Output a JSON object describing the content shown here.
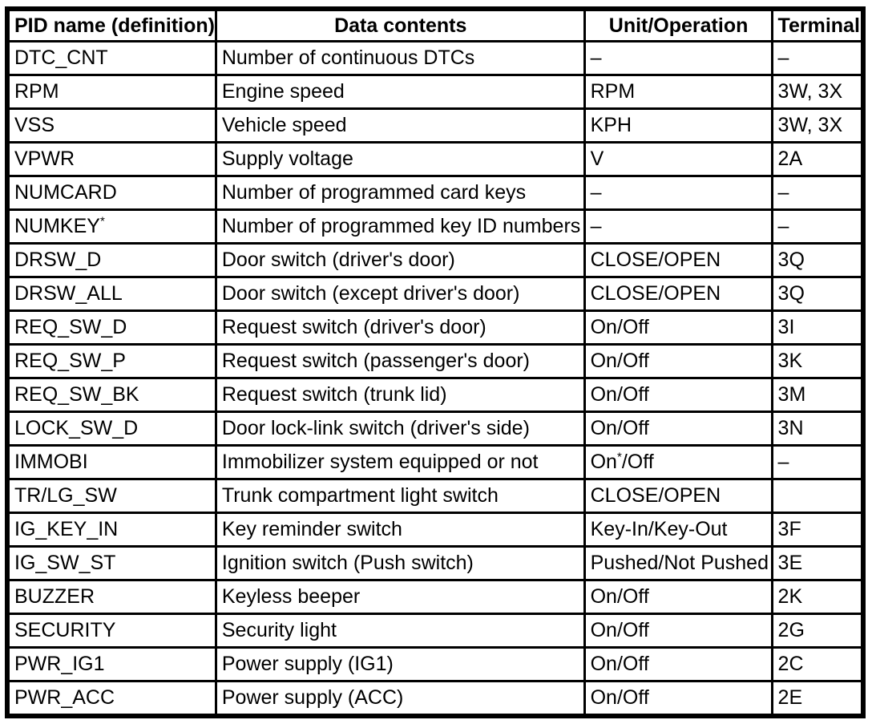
{
  "table": {
    "headers": [
      "PID name (definition)",
      "Data contents",
      "Unit/Operation",
      "Terminal"
    ],
    "rows": [
      {
        "pid": "DTC_CNT",
        "pid_sup": "",
        "data": "Number of continuous DTCs",
        "unit_pre": "–",
        "unit_sup": "",
        "unit_post": "",
        "terminal": "–"
      },
      {
        "pid": "RPM",
        "pid_sup": "",
        "data": "Engine speed",
        "unit_pre": "RPM",
        "unit_sup": "",
        "unit_post": "",
        "terminal": "3W, 3X"
      },
      {
        "pid": "VSS",
        "pid_sup": "",
        "data": "Vehicle speed",
        "unit_pre": "KPH",
        "unit_sup": "",
        "unit_post": "",
        "terminal": "3W, 3X"
      },
      {
        "pid": "VPWR",
        "pid_sup": "",
        "data": "Supply voltage",
        "unit_pre": "V",
        "unit_sup": "",
        "unit_post": "",
        "terminal": "2A"
      },
      {
        "pid": "NUMCARD",
        "pid_sup": "",
        "data": "Number of programmed card keys",
        "unit_pre": "–",
        "unit_sup": "",
        "unit_post": "",
        "terminal": "–"
      },
      {
        "pid": "NUMKEY",
        "pid_sup": "*",
        "data": "Number of programmed key ID numbers",
        "unit_pre": "–",
        "unit_sup": "",
        "unit_post": "",
        "terminal": "–"
      },
      {
        "pid": "DRSW_D",
        "pid_sup": "",
        "data": "Door switch (driver's door)",
        "unit_pre": "CLOSE/OPEN",
        "unit_sup": "",
        "unit_post": "",
        "terminal": "3Q"
      },
      {
        "pid": "DRSW_ALL",
        "pid_sup": "",
        "data": "Door switch (except driver's door)",
        "unit_pre": "CLOSE/OPEN",
        "unit_sup": "",
        "unit_post": "",
        "terminal": "3Q"
      },
      {
        "pid": "REQ_SW_D",
        "pid_sup": "",
        "data": "Request switch (driver's door)",
        "unit_pre": "On/Off",
        "unit_sup": "",
        "unit_post": "",
        "terminal": "3I"
      },
      {
        "pid": "REQ_SW_P",
        "pid_sup": "",
        "data": "Request switch (passenger's door)",
        "unit_pre": "On/Off",
        "unit_sup": "",
        "unit_post": "",
        "terminal": "3K"
      },
      {
        "pid": "REQ_SW_BK",
        "pid_sup": "",
        "data": "Request switch (trunk lid)",
        "unit_pre": "On/Off",
        "unit_sup": "",
        "unit_post": "",
        "terminal": "3M"
      },
      {
        "pid": "LOCK_SW_D",
        "pid_sup": "",
        "data": "Door lock-link switch (driver's side)",
        "unit_pre": "On/Off",
        "unit_sup": "",
        "unit_post": "",
        "terminal": "3N"
      },
      {
        "pid": "IMMOBI",
        "pid_sup": "",
        "data": "Immobilizer system equipped or not",
        "unit_pre": "On",
        "unit_sup": "*",
        "unit_post": "/Off",
        "terminal": "–"
      },
      {
        "pid": "TR/LG_SW",
        "pid_sup": "",
        "data": "Trunk compartment light switch",
        "unit_pre": "CLOSE/OPEN",
        "unit_sup": "",
        "unit_post": "",
        "terminal": ""
      },
      {
        "pid": "IG_KEY_IN",
        "pid_sup": "",
        "data": "Key reminder switch",
        "unit_pre": "Key-In/Key-Out",
        "unit_sup": "",
        "unit_post": "",
        "terminal": "3F"
      },
      {
        "pid": "IG_SW_ST",
        "pid_sup": "",
        "data": "Ignition switch (Push switch)",
        "unit_pre": "Pushed/Not Pushed",
        "unit_sup": "",
        "unit_post": "",
        "terminal": "3E"
      },
      {
        "pid": "BUZZER",
        "pid_sup": "",
        "data": "Keyless beeper",
        "unit_pre": "On/Off",
        "unit_sup": "",
        "unit_post": "",
        "terminal": "2K"
      },
      {
        "pid": "SECURITY",
        "pid_sup": "",
        "data": "Security light",
        "unit_pre": "On/Off",
        "unit_sup": "",
        "unit_post": "",
        "terminal": "2G"
      },
      {
        "pid": "PWR_IG1",
        "pid_sup": "",
        "data": "Power supply (IG1)",
        "unit_pre": "On/Off",
        "unit_sup": "",
        "unit_post": "",
        "terminal": "2C"
      },
      {
        "pid": "PWR_ACC",
        "pid_sup": "",
        "data": "Power supply (ACC)",
        "unit_pre": "On/Off",
        "unit_sup": "",
        "unit_post": "",
        "terminal": "2E"
      }
    ]
  }
}
